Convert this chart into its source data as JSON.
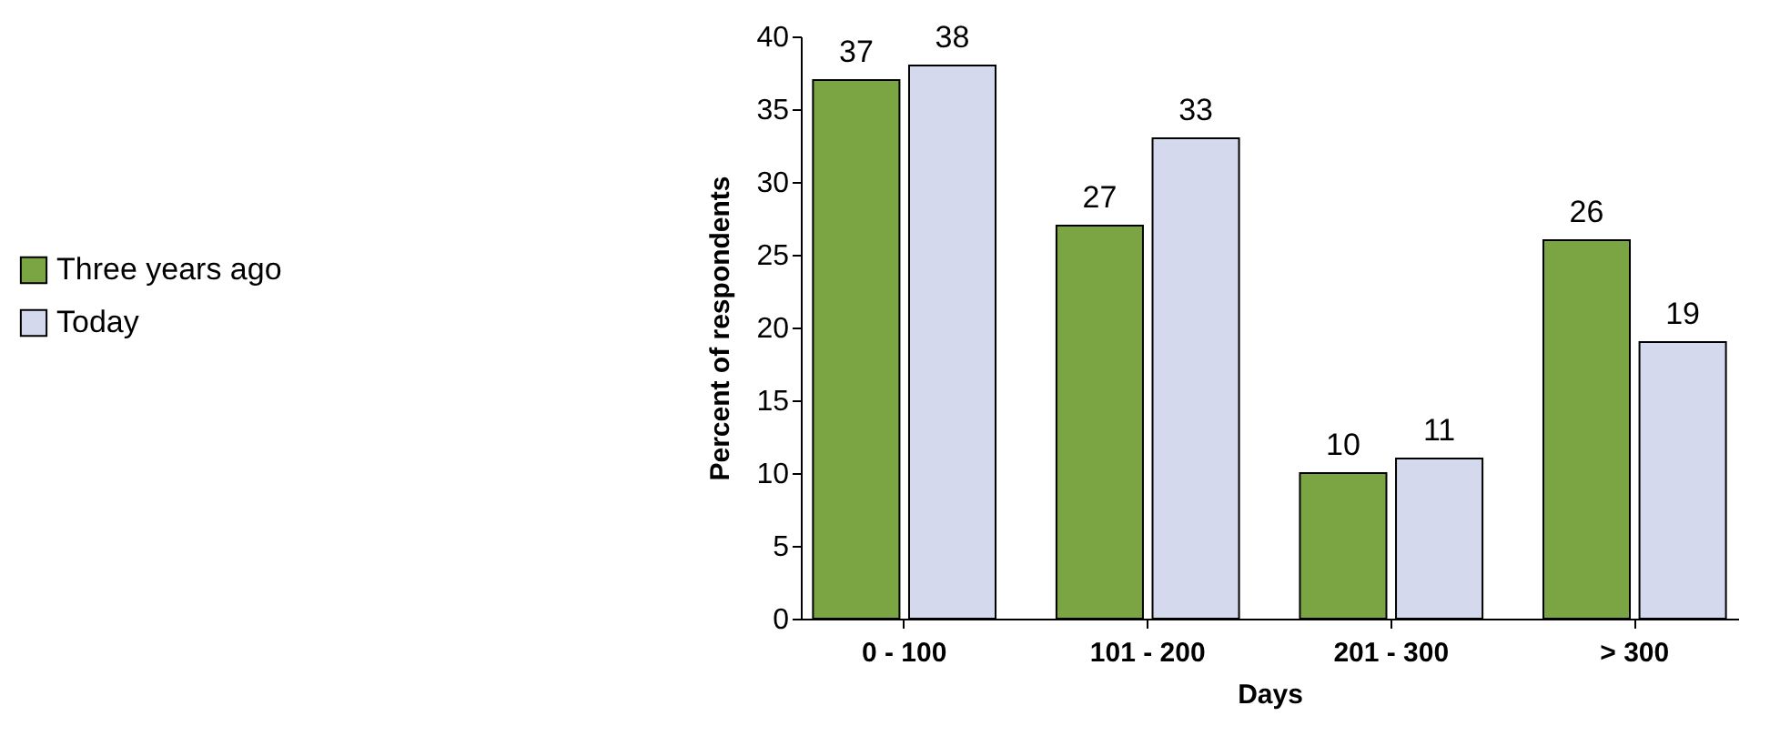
{
  "chart_data": {
    "type": "bar",
    "xlabel": "Days",
    "ylabel": "Percent of respondents",
    "categories": [
      "0 - 100",
      "101 - 200",
      "201 - 300",
      "> 300"
    ],
    "series": [
      {
        "name": "Three years ago",
        "color": "#7ba442",
        "values": [
          37,
          27,
          10,
          26
        ]
      },
      {
        "name": "Today",
        "color": "#d5d9ee",
        "values": [
          38,
          33,
          11,
          19
        ]
      }
    ],
    "ylim": [
      0,
      40
    ],
    "yticks": [
      0,
      5,
      10,
      15,
      20,
      25,
      30,
      35,
      40
    ],
    "grid": false,
    "legend": "left",
    "data_labels": true
  }
}
